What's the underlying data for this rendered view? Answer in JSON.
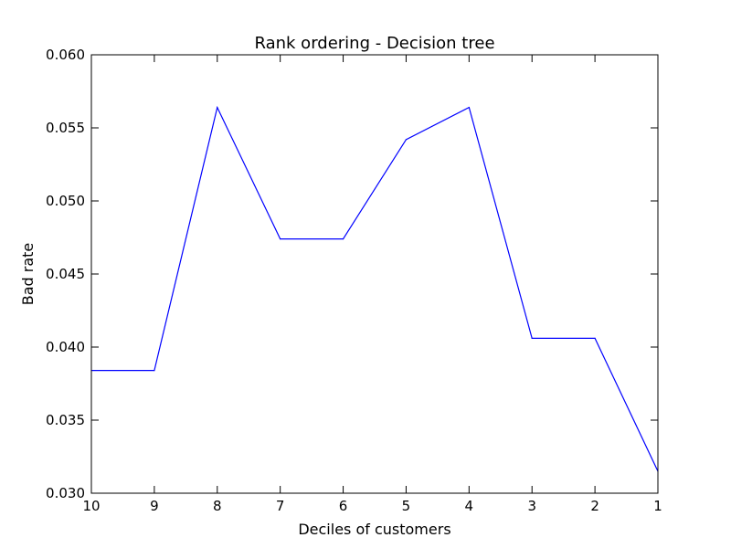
{
  "chart_data": {
    "type": "line",
    "title": "Rank ordering - Decision tree",
    "xlabel": "Deciles of customers",
    "ylabel": "Bad rate",
    "categories": [
      "10",
      "9",
      "8",
      "7",
      "6",
      "5",
      "4",
      "3",
      "2",
      "1"
    ],
    "y_tick_labels": [
      "0.030",
      "0.035",
      "0.040",
      "0.045",
      "0.050",
      "0.055",
      "0.060"
    ],
    "ylim": [
      0.03,
      0.06
    ],
    "grid": false,
    "series": [
      {
        "values": [
          0.0384,
          0.0384,
          0.0564,
          0.0474,
          0.0474,
          0.0542,
          0.0564,
          0.0406,
          0.0406,
          0.0315
        ],
        "color": "#0000ff"
      }
    ]
  }
}
